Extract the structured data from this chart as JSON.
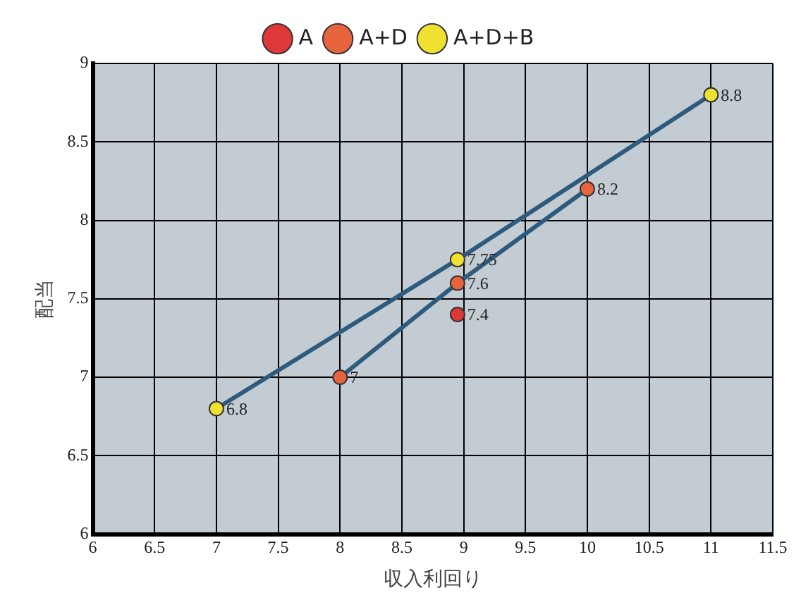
{
  "chart_data": {
    "type": "line",
    "xlabel": "収入利回り",
    "ylabel": "配当",
    "xlim": [
      6,
      11.5
    ],
    "xticks": [
      6,
      6.5,
      7,
      7.5,
      8,
      8.5,
      9,
      9.5,
      10,
      10.5,
      11,
      11.5
    ],
    "ylim": [
      6,
      9
    ],
    "yticks": [
      6,
      6.5,
      7,
      7.5,
      8,
      8.5,
      9
    ],
    "grid": true,
    "legend": "top",
    "marker": "circle",
    "line_style": "solid",
    "data_labels": true,
    "series": [
      {
        "name": "A",
        "color": "#e03838",
        "x": [
          8.95
        ],
        "values": [
          7.4
        ]
      },
      {
        "name": "A+D",
        "color": "#e8643c",
        "x": [
          8,
          8.95,
          10
        ],
        "values": [
          7,
          7.6,
          8.2
        ]
      },
      {
        "name": "A+D+B",
        "color": "#f0e030",
        "x": [
          7,
          8.95,
          11
        ],
        "values": [
          6.8,
          7.75,
          8.8
        ]
      }
    ]
  }
}
